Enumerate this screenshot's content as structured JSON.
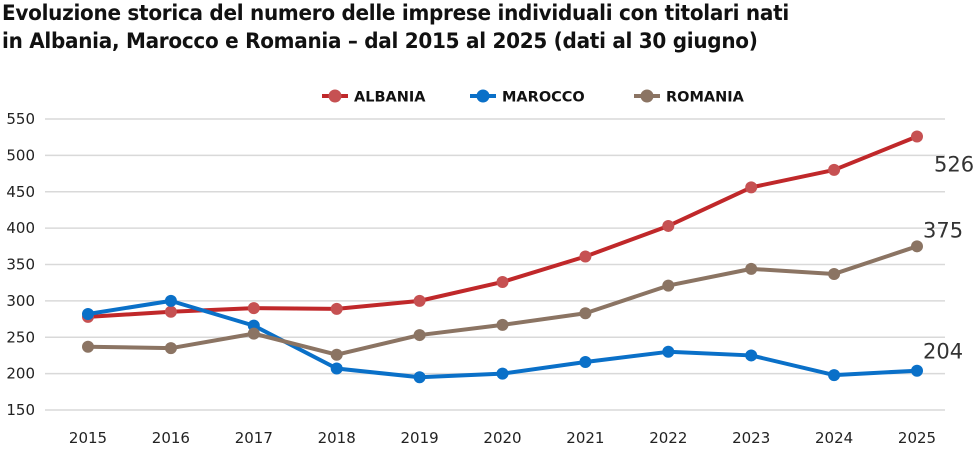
{
  "chart_data": {
    "type": "line",
    "title": "Evoluzione storica del numero delle imprese individuali con titolari nati in Albania, Marocco e Romania – dal 2015 al 2025 (dati al 30 giugno)",
    "title_lines": [
      "Evoluzione storica del numero delle imprese individuali con titolari nati",
      "in Albania, Marocco e Romania – dal 2015 al 2025 (dati al 30 giugno)"
    ],
    "xlabel": "",
    "ylabel": "",
    "x": [
      "2015",
      "2016",
      "2017",
      "2018",
      "2019",
      "2020",
      "2021",
      "2022",
      "2023",
      "2024",
      "2025"
    ],
    "ylim": [
      150,
      550
    ],
    "yticks": [
      150,
      200,
      250,
      300,
      350,
      400,
      450,
      500,
      550
    ],
    "grid": true,
    "legend_position": "top-center",
    "series": [
      {
        "name": "ALBANIA",
        "color": "#C0282A",
        "marker_color": "#C65152",
        "values": [
          278,
          285,
          290,
          289,
          300,
          326,
          361,
          403,
          456,
          480,
          526
        ],
        "end_label": "526"
      },
      {
        "name": "MAROCCO",
        "color": "#0A70C8",
        "marker_color": "#0A70C8",
        "values": [
          282,
          300,
          266,
          207,
          195,
          200,
          216,
          230,
          225,
          198,
          204
        ],
        "end_label": "204"
      },
      {
        "name": "ROMANIA",
        "color": "#8B7463",
        "marker_color": "#8B7463",
        "values": [
          237,
          235,
          255,
          226,
          253,
          267,
          283,
          321,
          344,
          337,
          375
        ],
        "end_label": "375"
      }
    ]
  }
}
